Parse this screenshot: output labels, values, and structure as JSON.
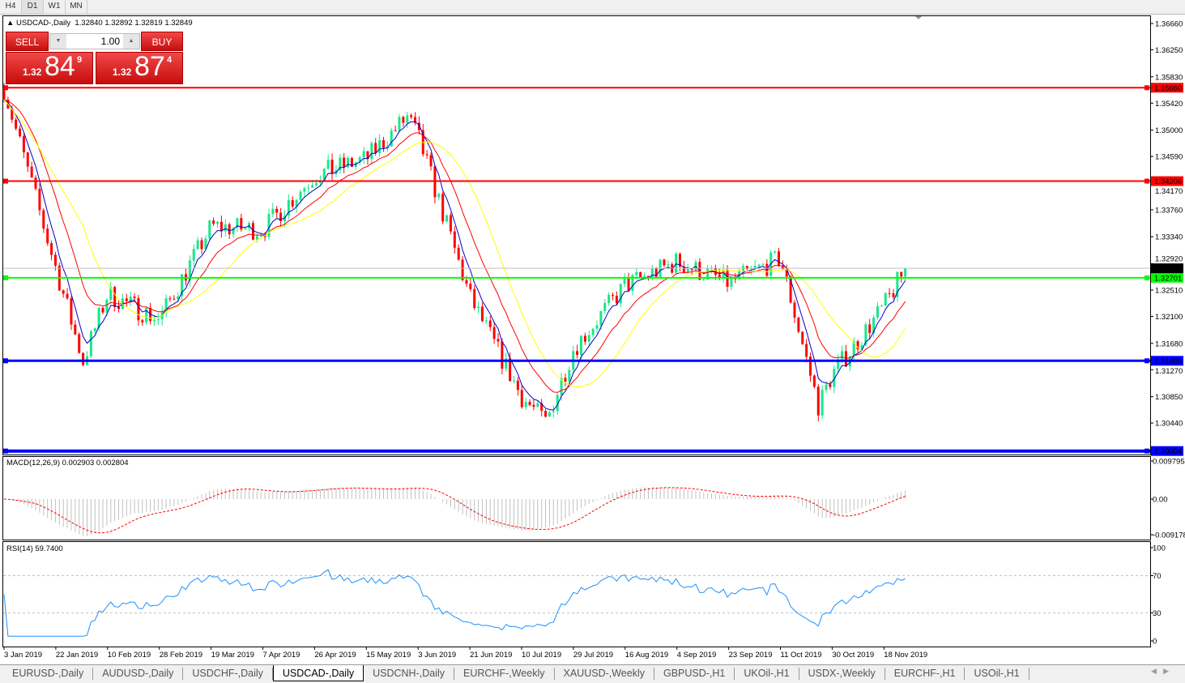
{
  "timeframes": [
    "H4",
    "D1",
    "W1",
    "MN"
  ],
  "active_timeframe": "D1",
  "header": {
    "symbol": "USDCAD-,Daily",
    "ohlc": "1.32840 1.32892 1.32819 1.32849"
  },
  "trade_panel": {
    "sell_label": "SELL",
    "buy_label": "BUY",
    "lot": "1.00",
    "sell": {
      "small": "1.32",
      "big": "84",
      "pip": "9"
    },
    "buy": {
      "small": "1.32",
      "big": "87",
      "pip": "4"
    }
  },
  "price_axis": [
    "1.36660",
    "1.36250",
    "1.35830",
    "1.35420",
    "1.35000",
    "1.34590",
    "1.34170",
    "1.33760",
    "1.33340",
    "1.32920",
    "1.32510",
    "1.32100",
    "1.31680",
    "1.31270",
    "1.30850",
    "1.30440"
  ],
  "levels": [
    {
      "price": "1.35660",
      "color": "#ff0000"
    },
    {
      "price": "1.34206",
      "color": "#ff0000"
    },
    {
      "price": "1.32701",
      "color": "#00ff00"
    },
    {
      "price": "1.31409",
      "color": "#0000ff"
    },
    {
      "price": "1.30004",
      "color": "#0000ff"
    }
  ],
  "current_price": "1.32849",
  "colors": {
    "bull": "#17e88a",
    "bear": "#ff0000",
    "ma_fast": "#0000cc",
    "ma_mid": "#ff0000",
    "ma_slow": "#ffff00",
    "macd_hist": "#c0c0c0",
    "macd_signal": "#ff0000",
    "rsi": "#1e90ff"
  },
  "chart_data": {
    "type": "candlestick",
    "symbol": "USDCAD",
    "timeframe": "Daily",
    "approx_closes": [
      [
        "3 Jan 2019",
        1.3565
      ],
      [
        "22 Jan 2019",
        1.3285
      ],
      [
        "1 Feb 2019",
        1.314
      ],
      [
        "10 Feb 2019",
        1.3245
      ],
      [
        "28 Feb 2019",
        1.3205
      ],
      [
        "19 Mar 2019",
        1.335
      ],
      [
        "7 Apr 2019",
        1.3345
      ],
      [
        "26 Apr 2019",
        1.343
      ],
      [
        "15 May 2019",
        1.3455
      ],
      [
        "30 May 2019",
        1.352
      ],
      [
        "3 Jun 2019",
        1.349
      ],
      [
        "21 Jun 2019",
        1.324
      ],
      [
        "10 Jul 2019",
        1.3085
      ],
      [
        "19 Jul 2019",
        1.3045
      ],
      [
        "29 Jul 2019",
        1.316
      ],
      [
        "16 Aug 2019",
        1.3258
      ],
      [
        "4 Sep 2019",
        1.3295
      ],
      [
        "23 Sep 2019",
        1.3262
      ],
      [
        "11 Oct 2019",
        1.33
      ],
      [
        "25 Oct 2019",
        1.307
      ],
      [
        "30 Oct 2019",
        1.312
      ],
      [
        "18 Nov 2019",
        1.3225
      ],
      [
        "26 Nov 2019",
        1.32849
      ]
    ],
    "x_ticks": [
      "3 Jan 2019",
      "22 Jan 2019",
      "10 Feb 2019",
      "28 Feb 2019",
      "19 Mar 2019",
      "7 Apr 2019",
      "26 Apr 2019",
      "15 May 2019",
      "3 Jun 2019",
      "21 Jun 2019",
      "10 Jul 2019",
      "29 Jul 2019",
      "16 Aug 2019",
      "4 Sep 2019",
      "23 Sep 2019",
      "11 Oct 2019",
      "30 Oct 2019",
      "18 Nov 2019"
    ],
    "ylim": [
      1.3,
      1.3666
    ]
  },
  "macd": {
    "label": "MACD(12,26,9) 0.002903 0.002804",
    "axis": [
      "0.009795",
      "0.00",
      "-0.009178"
    ],
    "range": [
      -0.009178,
      0.009795
    ]
  },
  "rsi": {
    "label": "RSI(14) 59.7400",
    "axis": [
      "100",
      "70",
      "30",
      "0"
    ],
    "levels": [
      70,
      30
    ]
  },
  "tabs": [
    "EURUSD-,Daily",
    "AUDUSD-,Daily",
    "USDCHF-,Daily",
    "USDCAD-,Daily",
    "USDCNH-,Daily",
    "EURCHF-,Weekly",
    "XAUUSD-,Weekly",
    "GBPUSD-,H1",
    "UKOil-,H1",
    "USDX-,Weekly",
    "EURCHF-,H1",
    "USOil-,H1"
  ],
  "active_tab": "USDCAD-,Daily"
}
